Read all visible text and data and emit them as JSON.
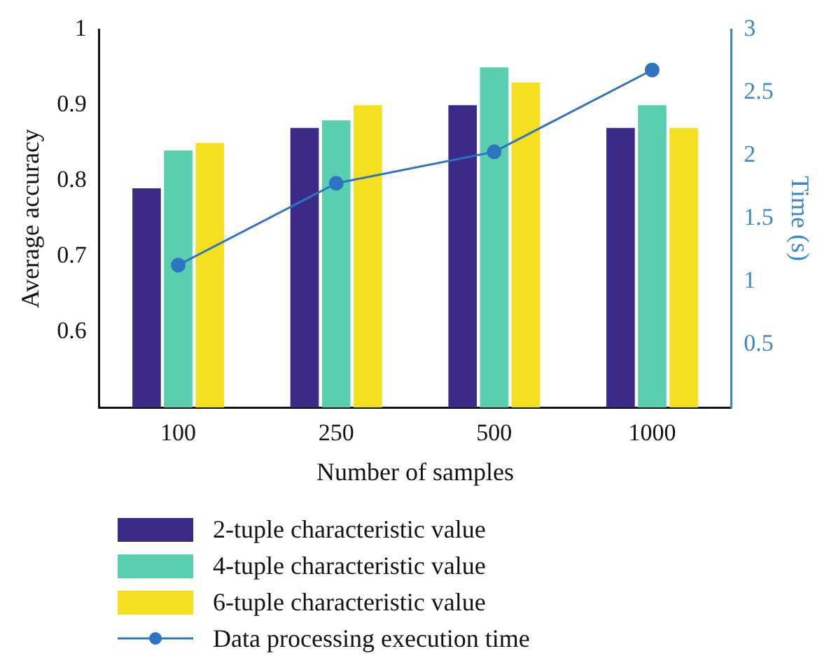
{
  "chart_data": {
    "type": "bar",
    "xlabel": "Number of samples",
    "ylabel": "Average accuracy",
    "y2label": "Time (s)",
    "categories": [
      "100",
      "250",
      "500",
      "1000"
    ],
    "series": [
      {
        "name": "2-tuple characteristic value",
        "color": "#3b2a88",
        "values": [
          0.79,
          0.87,
          0.9,
          0.87
        ]
      },
      {
        "name": "4-tuple characteristic value",
        "color": "#5acfb0",
        "values": [
          0.84,
          0.88,
          0.95,
          0.9
        ]
      },
      {
        "name": "6-tuple characteristic value",
        "color": "#f4e01e",
        "values": [
          0.85,
          0.9,
          0.93,
          0.87
        ]
      },
      {
        "name": "Data processing execution time",
        "type": "line",
        "axis": "y2",
        "color": "#2f74c0",
        "values": [
          1.13,
          1.78,
          2.03,
          2.68
        ],
        "marker": "circle"
      }
    ],
    "ylim": [
      0.5,
      1
    ],
    "yticks": [
      0.6,
      0.7,
      0.8,
      0.9,
      1
    ],
    "y2lim": [
      0,
      3
    ],
    "y2ticks": [
      0.5,
      1,
      1.5,
      2,
      2.5,
      3
    ],
    "grid": false,
    "legend": "bottom"
  }
}
